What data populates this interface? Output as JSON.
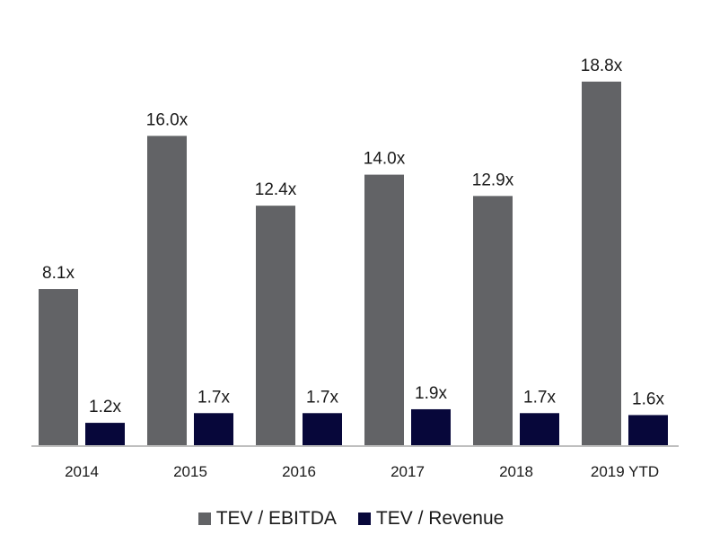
{
  "chart_data": {
    "type": "bar",
    "title": "",
    "xlabel": "",
    "ylabel": "",
    "categories": [
      "2014",
      "2015",
      "2016",
      "2017",
      "2018",
      "2019 YTD"
    ],
    "series": [
      {
        "name": "TEV / EBITDA",
        "color": "#626366",
        "values": [
          8.1,
          16.0,
          12.4,
          14.0,
          12.9,
          18.8
        ],
        "labels": [
          "8.1x",
          "16.0x",
          "12.4x",
          "14.0x",
          "12.9x",
          "18.8x"
        ]
      },
      {
        "name": "TEV / Revenue",
        "color": "#07073a",
        "values": [
          1.2,
          1.7,
          1.7,
          1.9,
          1.7,
          1.6
        ],
        "labels": [
          "1.2x",
          "1.7x",
          "1.7x",
          "1.9x",
          "1.7x",
          "1.6x"
        ]
      }
    ],
    "grid": false,
    "legend_position": "bottom"
  }
}
